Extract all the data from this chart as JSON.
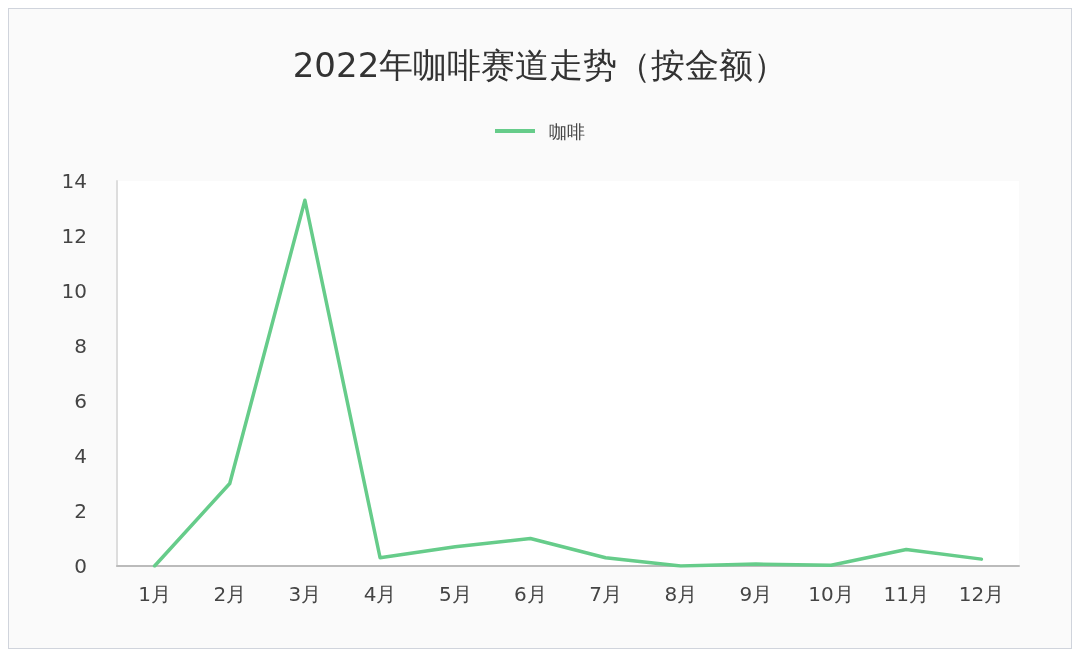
{
  "chart_data": {
    "type": "line",
    "title": "2022年咖啡赛道走势（按金额）",
    "categories": [
      "1月",
      "2月",
      "3月",
      "4月",
      "5月",
      "6月",
      "7月",
      "8月",
      "9月",
      "10月",
      "11月",
      "12月"
    ],
    "series": [
      {
        "name": "咖啡",
        "color": "#66cc8a",
        "values": [
          0,
          3,
          13.3,
          0.3,
          0.7,
          1.0,
          0.3,
          0,
          0.07,
          0.03,
          0.6,
          0.25
        ]
      }
    ],
    "ylim": [
      0,
      14
    ],
    "yticks": [
      0,
      2,
      4,
      6,
      8,
      10,
      12,
      14
    ],
    "grid": false,
    "legend": "top",
    "marker": "none",
    "line_style": "solid"
  }
}
